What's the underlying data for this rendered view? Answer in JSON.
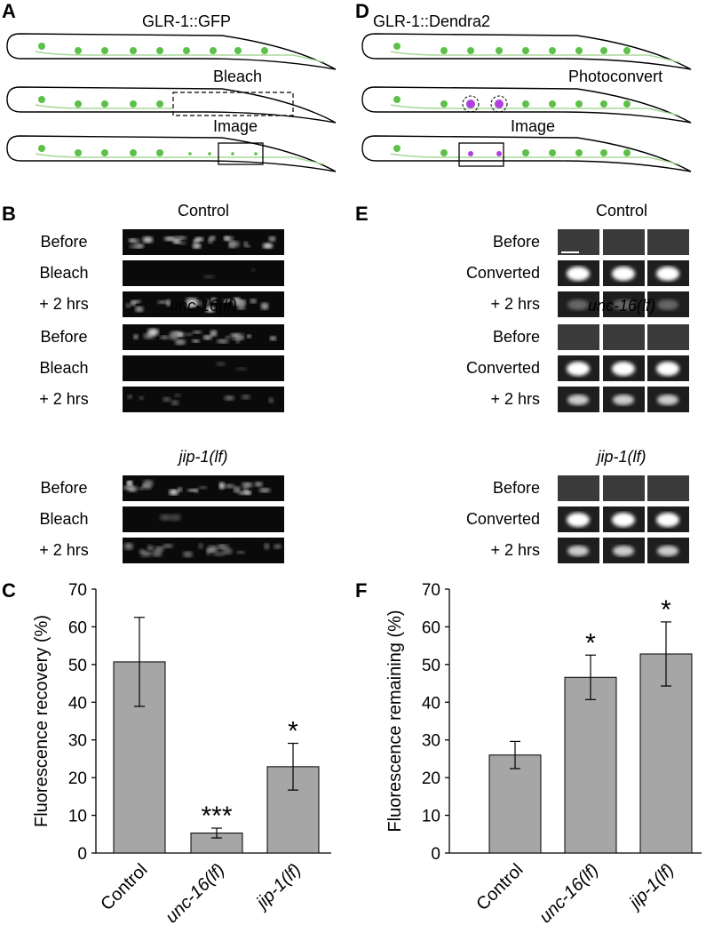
{
  "panel_letters": [
    "A",
    "B",
    "C",
    "D",
    "E",
    "F"
  ],
  "diagram_a": {
    "title": "GLR-1::GFP",
    "steps": [
      "Bleach",
      "Image"
    ]
  },
  "diagram_d": {
    "title": "GLR-1::Dendra2",
    "steps": [
      "Photoconvert",
      "Image"
    ]
  },
  "images_b": {
    "groups": [
      {
        "title": "Control",
        "rows": [
          "Before",
          "Bleach",
          "+ 2 hrs"
        ]
      },
      {
        "title": "unc-16(lf)",
        "rows": [
          "Before",
          "Bleach",
          "+ 2 hrs"
        ]
      },
      {
        "title": "jip-1(lf)",
        "rows": [
          "Before",
          "Bleach",
          "+ 2 hrs"
        ]
      }
    ]
  },
  "images_e": {
    "groups": [
      {
        "title": "Control",
        "rows": [
          "Before",
          "Converted",
          "+ 2 hrs"
        ]
      },
      {
        "title": "unc-16(lf)",
        "rows": [
          "Before",
          "Converted",
          "+ 2 hrs"
        ]
      },
      {
        "title": "jip-1(lf)",
        "rows": [
          "Before",
          "Converted",
          "+ 2 hrs"
        ]
      }
    ]
  },
  "chart_data": [
    {
      "type": "bar",
      "ylabel": "Fluorescence recovery (%)",
      "categories": [
        "Control",
        "unc-16(lf)",
        "jip-1(lf)"
      ],
      "values": [
        50.7,
        5.3,
        22.9
      ],
      "errors": [
        11.8,
        1.3,
        6.2
      ],
      "significance": [
        null,
        "***",
        "*"
      ],
      "color": "#a6a6a6",
      "ylim": [
        0,
        70
      ],
      "yticks": [
        0,
        10,
        20,
        30,
        40,
        50,
        60,
        70
      ]
    },
    {
      "type": "bar",
      "ylabel": "Fluorescence remaining (%)",
      "categories": [
        "Control",
        "unc-16(lf)",
        "jip-1(lf)"
      ],
      "values": [
        26.0,
        46.6,
        52.8
      ],
      "errors": [
        3.6,
        5.9,
        8.5
      ],
      "significance": [
        null,
        "*",
        "*"
      ],
      "color": "#a6a6a6",
      "ylim": [
        0,
        70
      ],
      "yticks": [
        0,
        10,
        20,
        30,
        40,
        50,
        60,
        70
      ]
    }
  ]
}
